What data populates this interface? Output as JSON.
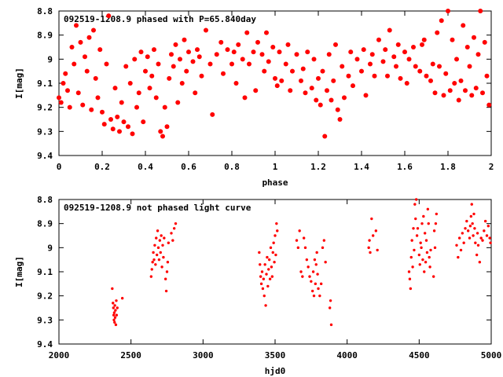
{
  "chart_data": [
    {
      "type": "scatter",
      "title": "092519-1208.9 phased with P=65.840day",
      "xlabel": "phase",
      "ylabel": "I[mag]",
      "xlim": [
        0,
        2
      ],
      "ylim": [
        9.4,
        8.8
      ],
      "y_inverted": true,
      "xticks": [
        "0",
        "0.2",
        "0.4",
        "0.6",
        "0.8",
        "1",
        "1.2",
        "1.4",
        "1.6",
        "1.8",
        "2"
      ],
      "yticks": [
        "8.8",
        "8.9",
        "9",
        "9.1",
        "9.2",
        "9.3",
        "9.4"
      ],
      "marker": "filled-circle",
      "color": "#ff0000",
      "points": [
        [
          0.0,
          9.16
        ],
        [
          0.01,
          9.18
        ],
        [
          0.02,
          9.1
        ],
        [
          0.03,
          9.06
        ],
        [
          0.04,
          9.13
        ],
        [
          0.05,
          9.2
        ],
        [
          0.06,
          8.95
        ],
        [
          0.07,
          9.02
        ],
        [
          0.08,
          8.86
        ],
        [
          0.09,
          9.14
        ],
        [
          0.1,
          8.93
        ],
        [
          0.11,
          9.19
        ],
        [
          0.12,
          8.99
        ],
        [
          0.13,
          9.05
        ],
        [
          0.14,
          8.91
        ],
        [
          0.15,
          9.21
        ],
        [
          0.16,
          8.88
        ],
        [
          0.17,
          9.08
        ],
        [
          0.18,
          9.16
        ],
        [
          0.19,
          8.96
        ],
        [
          0.2,
          9.22
        ],
        [
          0.21,
          9.27
        ],
        [
          0.22,
          9.02
        ],
        [
          0.23,
          8.82
        ],
        [
          0.24,
          9.25
        ],
        [
          0.25,
          9.29
        ],
        [
          0.26,
          9.12
        ],
        [
          0.27,
          9.24
        ],
        [
          0.28,
          9.3
        ],
        [
          0.29,
          9.18
        ],
        [
          0.3,
          9.26
        ],
        [
          0.31,
          9.03
        ],
        [
          0.32,
          9.28
        ],
        [
          0.33,
          9.1
        ],
        [
          0.34,
          9.31
        ],
        [
          0.35,
          9.0
        ],
        [
          0.36,
          9.2
        ],
        [
          0.37,
          9.14
        ],
        [
          0.38,
          8.97
        ],
        [
          0.39,
          9.26
        ],
        [
          0.4,
          9.05
        ],
        [
          0.41,
          8.99
        ],
        [
          0.42,
          9.12
        ],
        [
          0.43,
          9.07
        ],
        [
          0.44,
          8.96
        ],
        [
          0.45,
          9.16
        ],
        [
          0.46,
          9.02
        ],
        [
          0.47,
          9.3
        ],
        [
          0.48,
          9.32
        ],
        [
          0.49,
          9.2
        ],
        [
          0.5,
          9.28
        ],
        [
          0.51,
          9.08
        ],
        [
          0.52,
          8.98
        ],
        [
          0.53,
          9.03
        ],
        [
          0.54,
          8.94
        ],
        [
          0.55,
          9.18
        ],
        [
          0.56,
          9.0
        ],
        [
          0.57,
          9.1
        ],
        [
          0.58,
          8.92
        ],
        [
          0.59,
          9.05
        ],
        [
          0.6,
          8.97
        ],
        [
          0.62,
          9.01
        ],
        [
          0.63,
          9.14
        ],
        [
          0.64,
          8.96
        ],
        [
          0.65,
          8.99
        ],
        [
          0.66,
          9.07
        ],
        [
          0.68,
          8.88
        ],
        [
          0.7,
          9.02
        ],
        [
          0.71,
          9.23
        ],
        [
          0.73,
          8.98
        ],
        [
          0.75,
          8.93
        ],
        [
          0.76,
          9.06
        ],
        [
          0.78,
          8.96
        ],
        [
          0.8,
          9.02
        ],
        [
          0.81,
          8.97
        ],
        [
          0.82,
          9.1
        ],
        [
          0.83,
          8.94
        ],
        [
          0.85,
          9.0
        ],
        [
          0.86,
          9.16
        ],
        [
          0.87,
          8.89
        ],
        [
          0.88,
          9.02
        ],
        [
          0.9,
          8.97
        ],
        [
          0.91,
          9.13
        ],
        [
          0.92,
          8.93
        ],
        [
          0.94,
          8.98
        ],
        [
          0.95,
          9.05
        ],
        [
          0.96,
          8.89
        ],
        [
          0.97,
          9.01
        ],
        [
          0.99,
          8.95
        ],
        [
          1.0,
          9.08
        ],
        [
          1.01,
          9.11
        ],
        [
          1.02,
          8.97
        ],
        [
          1.03,
          9.09
        ],
        [
          1.05,
          9.02
        ],
        [
          1.06,
          8.94
        ],
        [
          1.07,
          9.13
        ],
        [
          1.08,
          9.05
        ],
        [
          1.1,
          8.98
        ],
        [
          1.12,
          9.09
        ],
        [
          1.13,
          9.04
        ],
        [
          1.14,
          9.14
        ],
        [
          1.15,
          8.97
        ],
        [
          1.17,
          9.12
        ],
        [
          1.18,
          9.0
        ],
        [
          1.19,
          9.17
        ],
        [
          1.2,
          9.08
        ],
        [
          1.21,
          9.19
        ],
        [
          1.22,
          9.05
        ],
        [
          1.23,
          9.32
        ],
        [
          1.24,
          9.13
        ],
        [
          1.25,
          8.98
        ],
        [
          1.26,
          9.17
        ],
        [
          1.27,
          9.09
        ],
        [
          1.28,
          8.94
        ],
        [
          1.29,
          9.21
        ],
        [
          1.3,
          9.25
        ],
        [
          1.31,
          9.03
        ],
        [
          1.32,
          9.16
        ],
        [
          1.34,
          9.07
        ],
        [
          1.35,
          8.97
        ],
        [
          1.36,
          9.11
        ],
        [
          1.38,
          9.0
        ],
        [
          1.4,
          9.05
        ],
        [
          1.41,
          8.96
        ],
        [
          1.42,
          9.15
        ],
        [
          1.44,
          9.02
        ],
        [
          1.45,
          8.98
        ],
        [
          1.46,
          9.07
        ],
        [
          1.48,
          8.92
        ],
        [
          1.5,
          9.01
        ],
        [
          1.51,
          8.96
        ],
        [
          1.52,
          9.07
        ],
        [
          1.53,
          8.88
        ],
        [
          1.55,
          8.99
        ],
        [
          1.56,
          9.03
        ],
        [
          1.57,
          8.94
        ],
        [
          1.58,
          9.08
        ],
        [
          1.6,
          8.97
        ],
        [
          1.61,
          9.1
        ],
        [
          1.62,
          9.0
        ],
        [
          1.64,
          8.95
        ],
        [
          1.65,
          9.03
        ],
        [
          1.67,
          9.05
        ],
        [
          1.68,
          8.94
        ],
        [
          1.69,
          8.92
        ],
        [
          1.7,
          9.07
        ],
        [
          1.72,
          9.09
        ],
        [
          1.73,
          9.02
        ],
        [
          1.74,
          9.14
        ],
        [
          1.75,
          8.89
        ],
        [
          1.76,
          9.03
        ],
        [
          1.77,
          8.84
        ],
        [
          1.78,
          9.15
        ],
        [
          1.79,
          9.06
        ],
        [
          1.8,
          8.8
        ],
        [
          1.81,
          9.13
        ],
        [
          1.82,
          8.92
        ],
        [
          1.83,
          9.1
        ],
        [
          1.84,
          9.0
        ],
        [
          1.85,
          9.17
        ],
        [
          1.86,
          9.09
        ],
        [
          1.87,
          8.86
        ],
        [
          1.88,
          9.13
        ],
        [
          1.89,
          8.95
        ],
        [
          1.9,
          9.03
        ],
        [
          1.91,
          9.15
        ],
        [
          1.92,
          8.91
        ],
        [
          1.93,
          9.12
        ],
        [
          1.94,
          8.98
        ],
        [
          1.95,
          8.8
        ],
        [
          1.96,
          9.14
        ],
        [
          1.97,
          8.93
        ],
        [
          1.98,
          9.07
        ],
        [
          1.99,
          9.19
        ]
      ]
    },
    {
      "type": "scatter",
      "title": "092519-1208.9 not phased light curve",
      "xlabel": "hjd0",
      "ylabel": "I[mag]",
      "xlim": [
        2000,
        5000
      ],
      "ylim": [
        9.4,
        8.8
      ],
      "y_inverted": true,
      "xticks": [
        "2000",
        "2500",
        "3000",
        "3500",
        "4000",
        "4500",
        "5000"
      ],
      "yticks": [
        "8.8",
        "8.9",
        "9",
        "9.1",
        "9.2",
        "9.3",
        "9.4"
      ],
      "marker": "dot",
      "color": "#ff0000",
      "points": [
        [
          2370,
          9.17
        ],
        [
          2375,
          9.23
        ],
        [
          2378,
          9.25
        ],
        [
          2380,
          9.28
        ],
        [
          2382,
          9.3
        ],
        [
          2384,
          9.27
        ],
        [
          2386,
          9.31
        ],
        [
          2388,
          9.24
        ],
        [
          2390,
          9.29
        ],
        [
          2392,
          9.26
        ],
        [
          2395,
          9.32
        ],
        [
          2398,
          9.22
        ],
        [
          2400,
          9.28
        ],
        [
          2405,
          9.25
        ],
        [
          2440,
          9.21
        ],
        [
          2640,
          9.12
        ],
        [
          2645,
          9.09
        ],
        [
          2650,
          9.06
        ],
        [
          2655,
          9.02
        ],
        [
          2660,
          9.05
        ],
        [
          2665,
          8.99
        ],
        [
          2670,
          9.07
        ],
        [
          2675,
          8.96
        ],
        [
          2680,
          9.03
        ],
        [
          2685,
          8.93
        ],
        [
          2690,
          9.0
        ],
        [
          2695,
          9.05
        ],
        [
          2700,
          8.97
        ],
        [
          2705,
          9.02
        ],
        [
          2710,
          8.95
        ],
        [
          2715,
          9.08
        ],
        [
          2720,
          8.99
        ],
        [
          2725,
          9.04
        ],
        [
          2730,
          8.96
        ],
        [
          2740,
          9.13
        ],
        [
          2745,
          9.18
        ],
        [
          2750,
          9.1
        ],
        [
          2755,
          9.06
        ],
        [
          2760,
          8.98
        ],
        [
          2780,
          8.94
        ],
        [
          2790,
          8.97
        ],
        [
          2800,
          8.92
        ],
        [
          2810,
          8.9
        ],
        [
          3390,
          9.02
        ],
        [
          3395,
          9.07
        ],
        [
          3400,
          9.12
        ],
        [
          3405,
          9.15
        ],
        [
          3410,
          9.1
        ],
        [
          3415,
          9.17
        ],
        [
          3420,
          9.13
        ],
        [
          3425,
          9.2
        ],
        [
          3430,
          9.07
        ],
        [
          3435,
          9.24
        ],
        [
          3440,
          9.11
        ],
        [
          3445,
          9.04
        ],
        [
          3450,
          9.16
        ],
        [
          3455,
          9.09
        ],
        [
          3460,
          9.05
        ],
        [
          3465,
          9.13
        ],
        [
          3470,
          9.0
        ],
        [
          3475,
          9.08
        ],
        [
          3480,
          9.12
        ],
        [
          3485,
          9.02
        ],
        [
          3490,
          8.98
        ],
        [
          3495,
          9.06
        ],
        [
          3500,
          8.95
        ],
        [
          3505,
          9.03
        ],
        [
          3510,
          8.9
        ],
        [
          3515,
          8.93
        ],
        [
          3650,
          8.97
        ],
        [
          3660,
          9.0
        ],
        [
          3670,
          8.93
        ],
        [
          3680,
          9.1
        ],
        [
          3690,
          9.12
        ],
        [
          3700,
          8.96
        ],
        [
          3710,
          9.0
        ],
        [
          3720,
          9.05
        ],
        [
          3730,
          9.08
        ],
        [
          3740,
          9.12
        ],
        [
          3750,
          9.14
        ],
        [
          3760,
          9.18
        ],
        [
          3765,
          9.1
        ],
        [
          3770,
          9.2
        ],
        [
          3775,
          9.05
        ],
        [
          3780,
          9.15
        ],
        [
          3785,
          9.07
        ],
        [
          3790,
          9.02
        ],
        [
          3795,
          9.11
        ],
        [
          3800,
          9.17
        ],
        [
          3810,
          9.2
        ],
        [
          3820,
          9.15
        ],
        [
          3830,
          9.0
        ],
        [
          3840,
          8.97
        ],
        [
          3850,
          9.06
        ],
        [
          3880,
          9.25
        ],
        [
          3885,
          9.22
        ],
        [
          3890,
          9.32
        ],
        [
          4150,
          9.0
        ],
        [
          4155,
          8.97
        ],
        [
          4160,
          9.02
        ],
        [
          4170,
          8.88
        ],
        [
          4180,
          8.95
        ],
        [
          4200,
          8.93
        ],
        [
          4210,
          9.01
        ],
        [
          4430,
          9.1
        ],
        [
          4435,
          9.13
        ],
        [
          4440,
          9.17
        ],
        [
          4445,
          9.04
        ],
        [
          4450,
          8.97
        ],
        [
          4455,
          9.08
        ],
        [
          4460,
          8.92
        ],
        [
          4465,
          9.01
        ],
        [
          4470,
          8.82
        ],
        [
          4475,
          8.88
        ],
        [
          4480,
          8.8
        ],
        [
          4485,
          8.95
        ],
        [
          4490,
          8.92
        ],
        [
          4500,
          9.03
        ],
        [
          4505,
          9.07
        ],
        [
          4510,
          8.98
        ],
        [
          4515,
          9.0
        ],
        [
          4520,
          8.9
        ],
        [
          4525,
          9.05
        ],
        [
          4530,
          8.87
        ],
        [
          4535,
          9.1
        ],
        [
          4540,
          8.94
        ],
        [
          4545,
          9.06
        ],
        [
          4550,
          8.97
        ],
        [
          4555,
          9.02
        ],
        [
          4560,
          8.84
        ],
        [
          4565,
          8.9
        ],
        [
          4570,
          9.04
        ],
        [
          4575,
          9.08
        ],
        [
          4580,
          9.01
        ],
        [
          4600,
          9.12
        ],
        [
          4605,
          8.93
        ],
        [
          4610,
          9.0
        ],
        [
          4615,
          8.9
        ],
        [
          4620,
          8.86
        ],
        [
          4760,
          8.99
        ],
        [
          4770,
          9.04
        ],
        [
          4780,
          8.96
        ],
        [
          4790,
          9.01
        ],
        [
          4800,
          8.94
        ],
        [
          4810,
          8.98
        ],
        [
          4820,
          8.92
        ],
        [
          4830,
          8.89
        ],
        [
          4840,
          8.93
        ],
        [
          4850,
          8.96
        ],
        [
          4855,
          8.91
        ],
        [
          4860,
          8.87
        ],
        [
          4865,
          8.82
        ],
        [
          4870,
          8.9
        ],
        [
          4875,
          8.95
        ],
        [
          4880,
          8.86
        ],
        [
          4885,
          8.92
        ],
        [
          4890,
          8.98
        ],
        [
          4900,
          9.03
        ],
        [
          4905,
          8.94
        ],
        [
          4910,
          8.99
        ],
        [
          4920,
          9.06
        ],
        [
          4930,
          8.96
        ],
        [
          4940,
          8.97
        ],
        [
          4950,
          8.93
        ],
        [
          4960,
          8.89
        ],
        [
          4970,
          8.95
        ],
        [
          4980,
          8.91
        ],
        [
          4990,
          8.96
        ],
        [
          4995,
          8.98
        ]
      ]
    }
  ]
}
